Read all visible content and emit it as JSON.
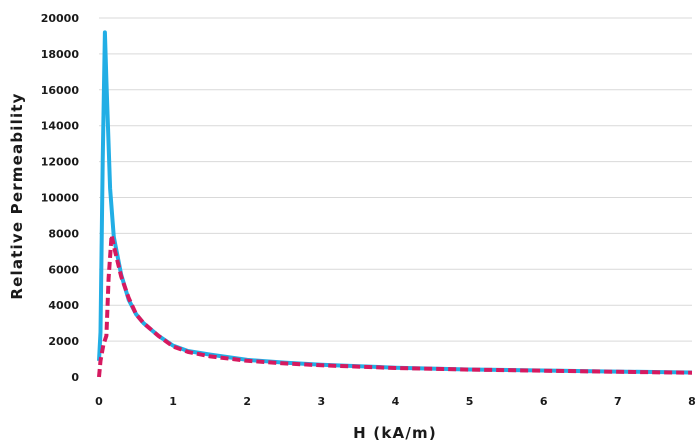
{
  "chart_data": {
    "type": "line",
    "xlabel": "H (kA/m)",
    "ylabel": "Relative Permeability",
    "xlim": [
      0,
      8
    ],
    "ylim": [
      0,
      20000
    ],
    "x_ticks": [
      "0",
      "1",
      "2",
      "3",
      "4",
      "5",
      "6",
      "7",
      "8"
    ],
    "y_ticks": [
      "0",
      "2000",
      "4000",
      "6000",
      "8000",
      "10000",
      "12000",
      "14000",
      "16000",
      "18000",
      "20000"
    ],
    "grid": "horizontal",
    "series": [
      {
        "style": "solid",
        "color": "#22aee5",
        "points": [
          [
            0,
            900
          ],
          [
            0.02,
            2500
          ],
          [
            0.05,
            12000
          ],
          [
            0.08,
            19200
          ],
          [
            0.1,
            16500
          ],
          [
            0.15,
            10500
          ],
          [
            0.2,
            7800
          ],
          [
            0.3,
            5700
          ],
          [
            0.4,
            4300
          ],
          [
            0.5,
            3500
          ],
          [
            0.6,
            3000
          ],
          [
            0.8,
            2300
          ],
          [
            1.0,
            1750
          ],
          [
            1.2,
            1450
          ],
          [
            1.5,
            1250
          ],
          [
            2.0,
            950
          ],
          [
            2.5,
            800
          ],
          [
            3.0,
            680
          ],
          [
            4.0,
            520
          ],
          [
            5.0,
            420
          ],
          [
            6.0,
            360
          ],
          [
            7.0,
            300
          ],
          [
            8.0,
            250
          ]
        ]
      },
      {
        "style": "dashed",
        "color": "#d6195f",
        "points": [
          [
            0,
            0
          ],
          [
            0.02,
            900
          ],
          [
            0.06,
            1800
          ],
          [
            0.1,
            2300
          ],
          [
            0.13,
            5500
          ],
          [
            0.17,
            7900
          ],
          [
            0.2,
            7300
          ],
          [
            0.3,
            5600
          ],
          [
            0.4,
            4400
          ],
          [
            0.5,
            3500
          ],
          [
            0.6,
            3000
          ],
          [
            0.8,
            2300
          ],
          [
            1.0,
            1700
          ],
          [
            1.2,
            1400
          ],
          [
            1.5,
            1150
          ],
          [
            2.0,
            900
          ],
          [
            2.5,
            760
          ],
          [
            3.0,
            650
          ],
          [
            4.0,
            500
          ],
          [
            5.0,
            410
          ],
          [
            6.0,
            350
          ],
          [
            7.0,
            290
          ],
          [
            8.0,
            240
          ]
        ]
      }
    ]
  }
}
